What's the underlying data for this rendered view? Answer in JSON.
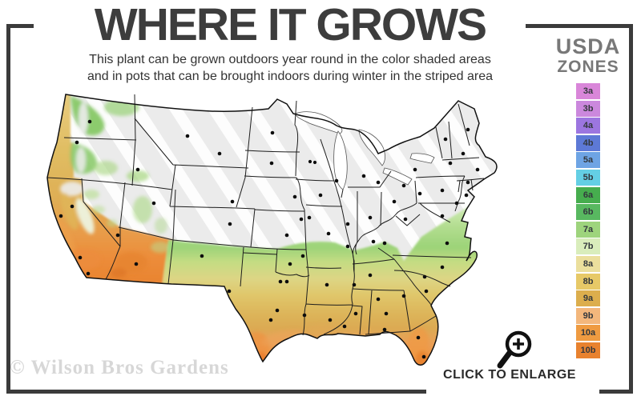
{
  "header": {
    "title": "WHERE IT GROWS",
    "subtitle_line1": "This plant can be grown outdoors year round in the color shaded areas",
    "subtitle_line2": "and in pots that can be brought indoors during winter in the striped area"
  },
  "legend": {
    "title_line1": "USDA",
    "title_line2": "ZONES",
    "zones": [
      {
        "label": "3a",
        "color": "#d986d9"
      },
      {
        "label": "3b",
        "color": "#cb88dd"
      },
      {
        "label": "4a",
        "color": "#9c76e0"
      },
      {
        "label": "4b",
        "color": "#5d79d6"
      },
      {
        "label": "5a",
        "color": "#6ea4e4"
      },
      {
        "label": "5b",
        "color": "#64cfe4"
      },
      {
        "label": "6a",
        "color": "#46ad4e"
      },
      {
        "label": "6b",
        "color": "#58b860"
      },
      {
        "label": "7a",
        "color": "#9ed47d"
      },
      {
        "label": "7b",
        "color": "#d9edbc"
      },
      {
        "label": "8a",
        "color": "#ebdf9d"
      },
      {
        "label": "8b",
        "color": "#e7c967"
      },
      {
        "label": "9a",
        "color": "#dcae4d"
      },
      {
        "label": "9b",
        "color": "#f3b77c"
      },
      {
        "label": "10a",
        "color": "#ef9b41"
      },
      {
        "label": "10b",
        "color": "#e8822f"
      }
    ]
  },
  "map": {
    "region": "Contiguous United States",
    "striped_area_color": "#ebebeb"
  },
  "footer": {
    "watermark": "© Wilson Bros Gardens",
    "enlarge_label": "CLICK TO ENLARGE",
    "enlarge_icon": "magnifier-plus-icon"
  },
  "colors": {
    "frame": "#3b3b3b",
    "title_text": "#3d3d3d",
    "legend_title_text": "#787878",
    "map_base": "#ebebeb"
  }
}
